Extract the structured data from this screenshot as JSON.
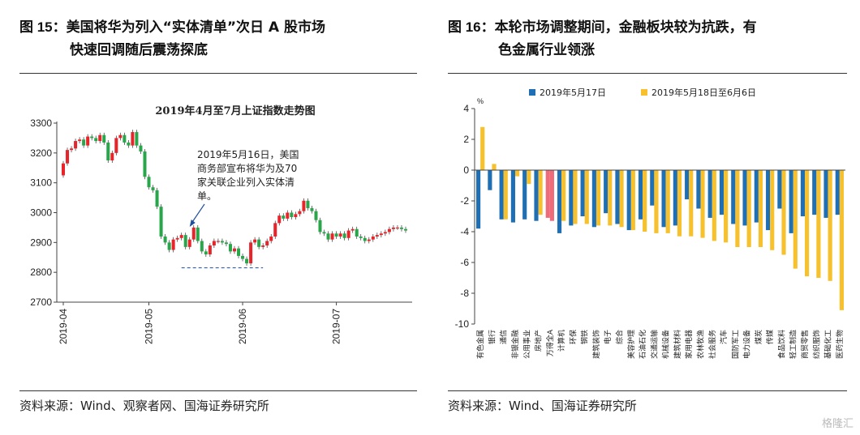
{
  "left_panel": {
    "figure_label": "图 15",
    "heading_line1": "：美国将华为列入“实体清单”次日 A 股市场",
    "heading_line2": "快速回调随后震荡探底",
    "source": "资料来源：Wind、观察者网、国海证券研究所"
  },
  "right_panel": {
    "figure_label": "图 16",
    "heading_line1": "：本轮市场调整期间，金融板块较为抗跌，有",
    "heading_line2": "色金属行业领涨",
    "source": "资料来源：Wind、国海证券研究所"
  },
  "watermark": "格隆汇",
  "chart_data": [
    {
      "type": "candlestick",
      "title": "2019年4月至7月上证指数走势图",
      "ylim": [
        2700,
        3300
      ],
      "y_ticks": [
        2700,
        2800,
        2900,
        3000,
        3100,
        3200,
        3300
      ],
      "x_ticks": [
        "2019-04",
        "2019-05",
        "2019-06",
        "2019-07"
      ],
      "x_tick_index": [
        0,
        21,
        44,
        67
      ],
      "colors": {
        "up": "#e8242a",
        "down": "#27a64a"
      },
      "annotation": {
        "text": [
          "2019年5月16日，美国",
          "商务部宣布将华为及70",
          "家关联企业列入实体清",
          "单。"
        ],
        "index": 31
      },
      "support_line": {
        "value": 2815,
        "from_index": 29,
        "to_index": 49
      },
      "closes": [
        3165,
        3210,
        3215,
        3240,
        3245,
        3225,
        3255,
        3250,
        3240,
        3260,
        3235,
        3175,
        3200,
        3250,
        3260,
        3235,
        3225,
        3270,
        3225,
        3205,
        3120,
        3085,
        3075,
        3020,
        2920,
        2900,
        2875,
        2910,
        2915,
        2925,
        2885,
        2910,
        2950,
        2905,
        2870,
        2860,
        2890,
        2905,
        2905,
        2900,
        2895,
        2870,
        2880,
        2855,
        2845,
        2830,
        2900,
        2910,
        2885,
        2890,
        2905,
        2920,
        2965,
        2990,
        2980,
        3000,
        2985,
        2995,
        3005,
        3040,
        3015,
        3005,
        2975,
        2935,
        2930,
        2910,
        2930,
        2920,
        2930,
        2915,
        2940,
        2945,
        2920,
        2915,
        2905,
        2910,
        2920,
        2925,
        2930,
        2935,
        2945,
        2950,
        2950,
        2945,
        2940
      ]
    },
    {
      "type": "bar",
      "unit": "%",
      "ylim": [
        -10,
        4
      ],
      "y_ticks": [
        -10,
        -8,
        -6,
        -4,
        -2,
        0,
        2,
        4
      ],
      "legend": [
        "2019年5月17日",
        "2019年5月18日至6月6日"
      ],
      "series_colors": [
        "#1f6fb4",
        "#f6c12c"
      ],
      "highlight_color": "#ee6b79",
      "categories": [
        "有色金属",
        "银行",
        "通信",
        "非银金融",
        "公用事业",
        "房地产",
        "万得全A",
        "计算机",
        "环保",
        "钢铁",
        "建筑装饰",
        "电子",
        "综合",
        "美容护理",
        "石油石化",
        "交通运输",
        "机械设备",
        "建筑材料",
        "家用电器",
        "农林牧渔",
        "社会服务",
        "汽车",
        "国防军工",
        "电力设备",
        "煤炭",
        "传媒",
        "食品饮料",
        "轻工制造",
        "商贸零售",
        "纺织服饰",
        "基础化工",
        "医药生物"
      ],
      "series": [
        {
          "name": "2019年5月17日",
          "values": [
            -3.8,
            -1.3,
            -3.2,
            -3.4,
            -3.2,
            -3.3,
            -3.1,
            -4.1,
            -3.6,
            -3.0,
            -3.7,
            -2.8,
            -3.5,
            -3.9,
            -3.2,
            -2.3,
            -3.7,
            -3.6,
            -1.9,
            -2.5,
            -3.1,
            -2.9,
            -3.5,
            -3.6,
            -3.4,
            -3.9,
            -2.5,
            -4.1,
            -3.0,
            -2.9,
            -3.1,
            -2.9
          ]
        },
        {
          "name": "2019年5月18日至6月6日",
          "values": [
            2.8,
            0.4,
            -3.2,
            -0.4,
            -0.9,
            -2.9,
            -3.3,
            -3.3,
            -3.5,
            -3.5,
            -3.6,
            -3.6,
            -3.7,
            -3.9,
            -4.0,
            -4.1,
            -4.1,
            -4.3,
            -4.3,
            -4.4,
            -4.6,
            -4.7,
            -5.0,
            -5.0,
            -5.0,
            -5.2,
            -5.5,
            -6.4,
            -6.9,
            -7.0,
            -7.2,
            -9.1
          ]
        }
      ]
    }
  ]
}
